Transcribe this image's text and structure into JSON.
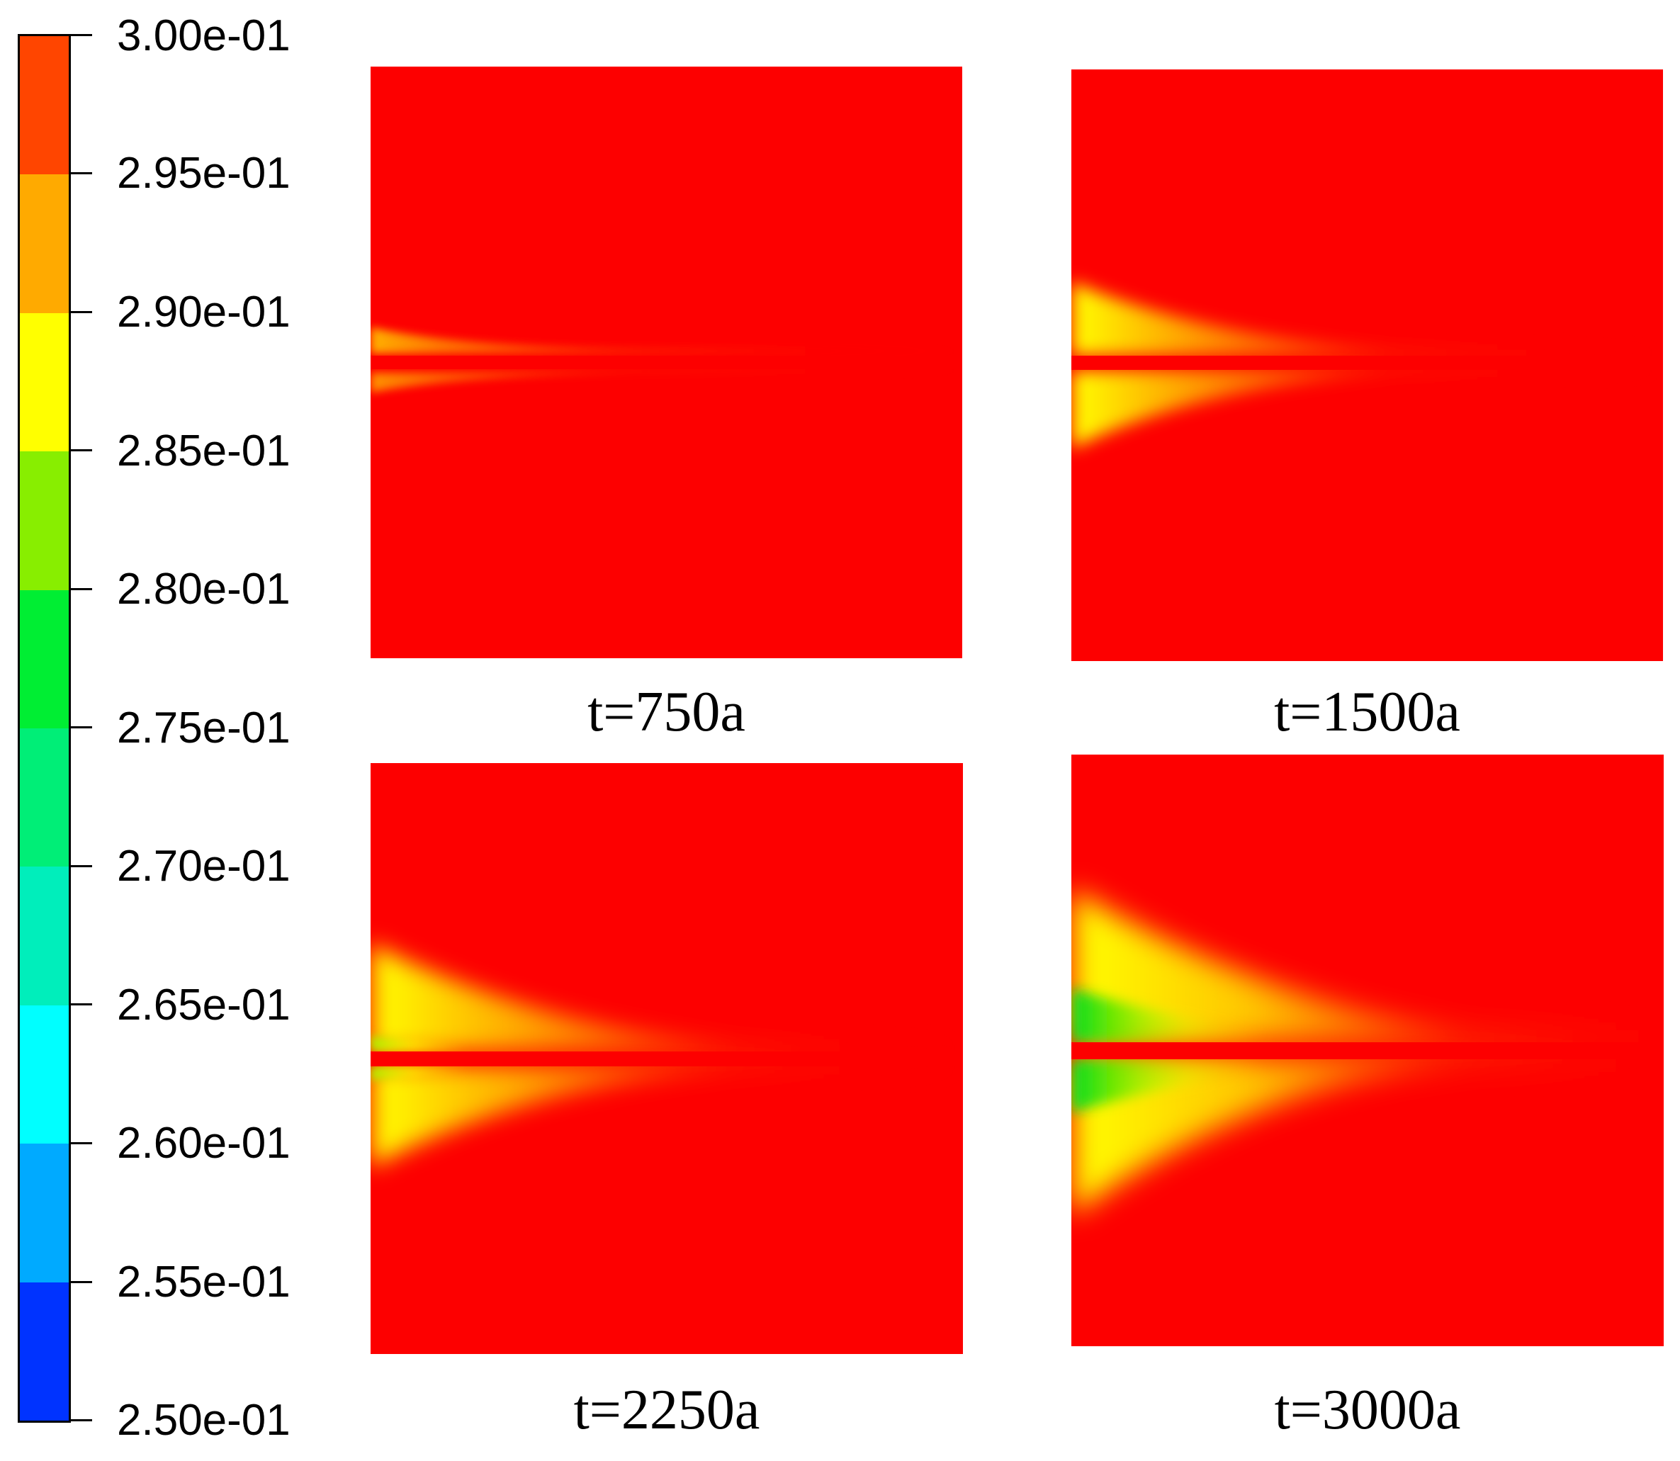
{
  "legend": {
    "ticks": [
      "3.00e-01",
      "2.95e-01",
      "2.90e-01",
      "2.85e-01",
      "2.80e-01",
      "2.75e-01",
      "2.70e-01",
      "2.65e-01",
      "2.60e-01",
      "2.55e-01",
      "2.50e-01"
    ],
    "band_colors": [
      "#ff4500",
      "#ffaa00",
      "#ffff00",
      "#88ee00",
      "#00ee33",
      "#00ee77",
      "#00eebb",
      "#00ffff",
      "#00aaff",
      "#0033ff"
    ]
  },
  "panels": [
    {
      "caption": "t=750a"
    },
    {
      "caption": "t=1500a"
    },
    {
      "caption": "t=2250a"
    },
    {
      "caption": "t=3000a"
    }
  ]
}
